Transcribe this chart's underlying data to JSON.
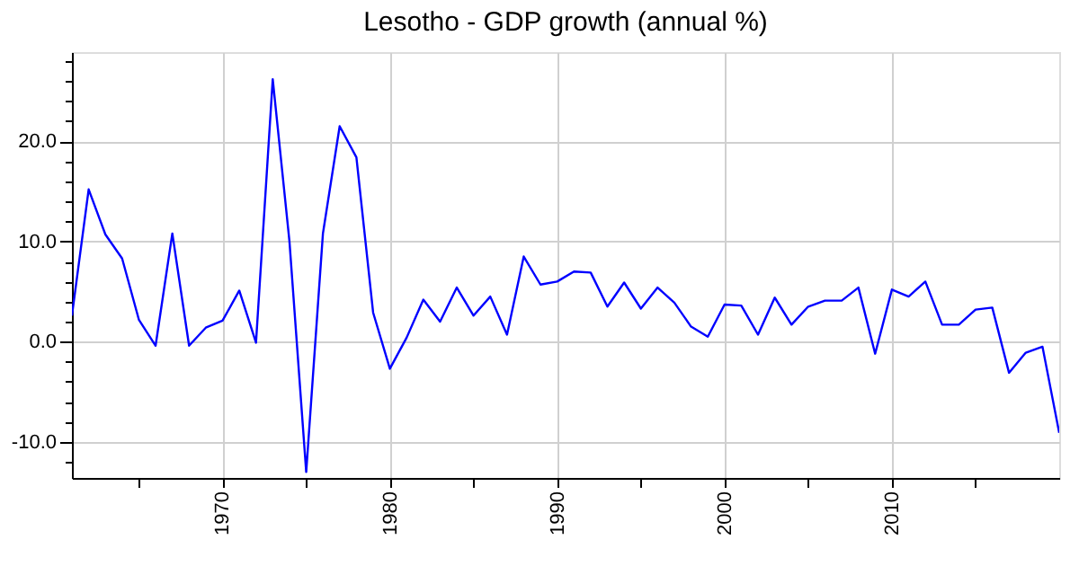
{
  "chart_data": {
    "type": "line",
    "title": "Lesotho - GDP growth (annual %)",
    "x": [
      1961,
      1962,
      1963,
      1964,
      1965,
      1966,
      1967,
      1968,
      1969,
      1970,
      1971,
      1972,
      1973,
      1974,
      1975,
      1976,
      1977,
      1978,
      1979,
      1980,
      1981,
      1982,
      1983,
      1984,
      1985,
      1986,
      1987,
      1988,
      1989,
      1990,
      1991,
      1992,
      1993,
      1994,
      1995,
      1996,
      1997,
      1998,
      1999,
      2000,
      2001,
      2002,
      2003,
      2004,
      2005,
      2006,
      2007,
      2008,
      2009,
      2010,
      2011,
      2012,
      2013,
      2014,
      2015,
      2016,
      2017,
      2018,
      2019,
      2020
    ],
    "series": [
      {
        "color": "#0000ff",
        "values": [
          2.6,
          15.2,
          10.7,
          8.3,
          2.2,
          -0.4,
          10.8,
          -0.4,
          1.4,
          2.1,
          5.1,
          -0.1,
          26.2,
          10,
          -13.0,
          10.8,
          21.5,
          18.4,
          2.9,
          -2.7,
          0.4,
          4.2,
          2.0,
          5.4,
          2.6,
          4.5,
          0.7,
          8.5,
          5.7,
          6.0,
          7.0,
          6.9,
          3.5,
          5.9,
          3.3,
          5.4,
          3.9,
          1.5,
          0.5,
          3.7,
          3.6,
          0.7,
          4.4,
          1.7,
          3.5,
          4.1,
          4.1,
          5.4,
          -1.2,
          5.2,
          4.5,
          6.0,
          1.7,
          1.7,
          3.2,
          3.4,
          -3.1,
          -1.1,
          -0.5,
          -9.1
        ]
      }
    ],
    "xlim": [
      1961,
      2020
    ],
    "xticks": [
      {
        "value": 1965,
        "label": null
      },
      1970,
      {
        "value": 1975,
        "label": null
      },
      1980,
      {
        "value": 1985,
        "label": null
      },
      1990,
      {
        "value": 1995,
        "label": null
      },
      2000,
      {
        "value": 2005,
        "label": null
      },
      2010,
      {
        "value": 2015,
        "label": null
      }
    ],
    "ylim": [
      -13.6,
      28.9
    ],
    "yticks": [
      {
        "value": -12,
        "label": null
      },
      {
        "value": -10,
        "label": "-10.0"
      },
      {
        "value": -8,
        "label": null
      },
      {
        "value": -6,
        "label": null
      },
      {
        "value": -4,
        "label": null
      },
      {
        "value": -2,
        "label": null
      },
      {
        "value": 0,
        "label": "0.0"
      },
      {
        "value": 2,
        "label": null
      },
      {
        "value": 4,
        "label": null
      },
      {
        "value": 6,
        "label": null
      },
      {
        "value": 8,
        "label": null
      },
      {
        "value": 10,
        "label": "10.0"
      },
      {
        "value": 12,
        "label": null
      },
      {
        "value": 14,
        "label": null
      },
      {
        "value": 16,
        "label": null
      },
      {
        "value": 18,
        "label": null
      },
      {
        "value": 20,
        "label": "20.0"
      },
      {
        "value": 22,
        "label": null
      },
      {
        "value": 24,
        "label": null
      },
      {
        "value": 26,
        "label": null
      },
      {
        "value": 28,
        "label": null
      }
    ],
    "grid": true,
    "marker": "none",
    "line_style": "solid"
  }
}
